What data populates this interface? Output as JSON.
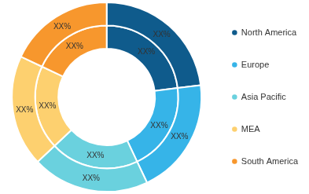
{
  "chart_data": {
    "type": "doughnut",
    "categories": [
      "North America",
      "Europe",
      "Asia Pacific",
      "MEA",
      "South America"
    ],
    "colors": [
      "#0f5b8c",
      "#36b4e8",
      "#6ad1de",
      "#fdd06f",
      "#f7972d"
    ],
    "series": [
      {
        "values": [
          23,
          20,
          20,
          19,
          18
        ],
        "value_labels": [
          "XX%",
          "XX%",
          "XX%",
          "XX%",
          "XX%"
        ]
      },
      {
        "values": [
          23,
          20,
          20,
          19,
          18
        ],
        "value_labels": [
          "XX%",
          "XX%",
          "XX%",
          "XX%",
          "XX%"
        ]
      }
    ],
    "data_labels": true,
    "legend": "right"
  }
}
